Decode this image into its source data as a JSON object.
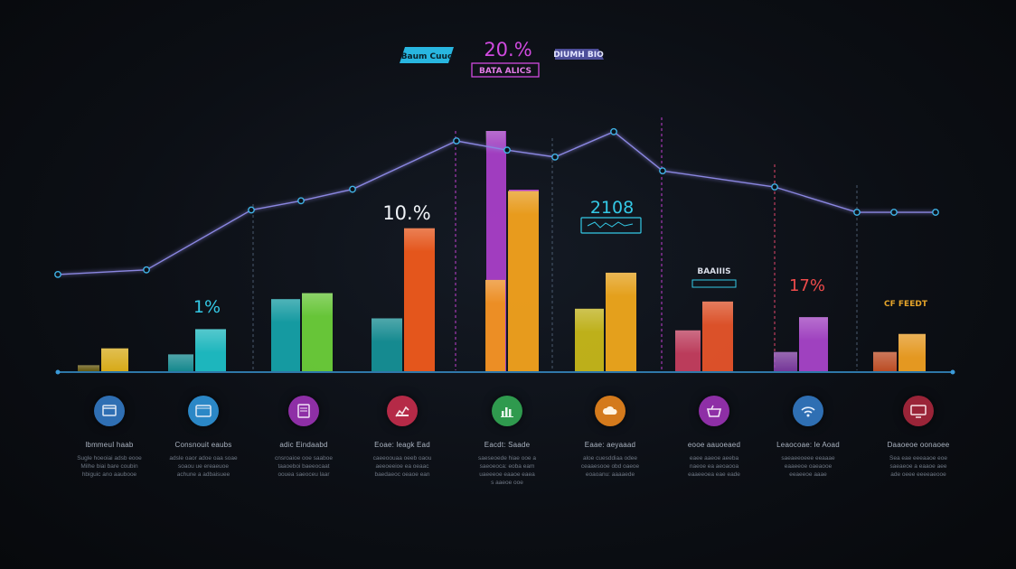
{
  "chart_data": {
    "type": "bar",
    "title": "",
    "xlabel": "",
    "ylabel": "",
    "ylim": [
      0,
      100
    ],
    "grid": false,
    "groups": [
      {
        "bars": [
          {
            "value": 2.5,
            "color": "#7a6a10"
          },
          {
            "value": 9.5,
            "color": "#e3b318"
          }
        ]
      },
      {
        "bars": [
          {
            "value": 7,
            "color": "#17a3a8"
          },
          {
            "value": 17.5,
            "color": "#1fc0c6"
          }
        ]
      },
      {
        "bars": [
          {
            "value": 30,
            "color": "#17b8c0"
          },
          {
            "value": 32.5,
            "color": "#6dcf3a"
          }
        ]
      },
      {
        "bars": [
          {
            "value": 22,
            "color": "#17a5aa"
          },
          {
            "value": 59.5,
            "color": "#f05a1c"
          }
        ]
      },
      {
        "bars": [
          {
            "value": 38,
            "color": "#f0921c"
          },
          {
            "value": 100,
            "color": "#a93fc8"
          },
          {
            "value": 75,
            "color": "#f3a21e"
          }
        ]
      },
      {
        "bars": [
          {
            "value": 26,
            "color": "#e4d21a"
          },
          {
            "value": 41,
            "color": "#f0a81c"
          }
        ]
      },
      {
        "bars": [
          {
            "value": 17,
            "color": "#e2466a"
          },
          {
            "value": 29,
            "color": "#e7542a"
          }
        ]
      },
      {
        "bars": [
          {
            "value": 8,
            "color": "#8c3fb5"
          },
          {
            "value": 22.5,
            "color": "#a845c8"
          }
        ]
      },
      {
        "bars": [
          {
            "value": 8,
            "color": "#e25a28"
          },
          {
            "value": 15.5,
            "color": "#f0a022"
          }
        ]
      }
    ],
    "line": {
      "color": "#8a86e0",
      "values": [
        42,
        44,
        70,
        74,
        79,
        100,
        96,
        93,
        104,
        87,
        80,
        69,
        69
      ]
    },
    "annotations": {
      "top_left_tag": "Baum Cuuc",
      "top_center_pct": "20.%",
      "top_center_tag": "BATA ALICS",
      "top_right_tag": "DIUMH BIO",
      "pct_a": "1%",
      "pct_b": "10.%",
      "pct_c": "2108",
      "tag_d": "BAAIIIS",
      "pct_e": "17%",
      "tag_f": "CF FEEDT"
    },
    "colors": {
      "axis": "#3a9ad9",
      "line": "#8a86e0",
      "accent_cyan": "#28c3e0",
      "accent_magenta": "#c13fd0"
    }
  },
  "columns": [
    {
      "icon": "window-icon",
      "color": "#2f6fb3",
      "title": "lbmmeuI haab",
      "desc": "Sugle hoeoiai adsb eooe\nMilhe biai bare coubin\nhbiguic ano aaubooe"
    },
    {
      "icon": "browser-icon",
      "color": "#2b87c6",
      "title": "Consnouit eaubs",
      "desc": "adsle oaor adoe oaa soae\nsoaou ue ereaeuoe\nachune a adbaisuee"
    },
    {
      "icon": "document-icon",
      "color": "#8e2fa6",
      "title": "adic Eindaabd",
      "desc": "cnsroaioe ooe saaboe\ntaaoeboi baeeocaat\noouea saeoceu laar"
    },
    {
      "icon": "analytics-icon",
      "color": "#b52a47",
      "title": "Eoae: leagk Ead",
      "desc": "caeeoouaa oeeb oaou\naeeoeeioe ea oeaac\nbaedaeoc oeaoe ean"
    },
    {
      "icon": "bar-chart-icon",
      "color": "#2f9a4e",
      "title": "Eacdt: Saade",
      "desc": "saeseoede hiae ooe a\nsaeoeoca: eoba eam\nuaeeeoe eaaoe eaea\ns aaeoe ooe"
    },
    {
      "icon": "cloud-icon",
      "color": "#d47a1c",
      "title": "Eaae: aeyaaad",
      "desc": "aloe cuesddiaa odee\nceaaesooe obd oaeoe\neoaoanu: aaaaede"
    },
    {
      "icon": "basket-icon",
      "color": "#8e2fa6",
      "title": "eooe aauoeaed",
      "desc": "eaee aaeoe aeeba\nnaeoe ea aeoaooa\neaaeeoea eae eade"
    },
    {
      "icon": "wifi-icon",
      "color": "#2f6fb3",
      "title": "Leaocoae: le Aoad",
      "desc": "saeaeeoeee eeaaae\neaaeeoe oaeaooe\neeaeeoe aaae"
    },
    {
      "icon": "monitor-icon",
      "color": "#9a2438",
      "title": "Daaoeoe oonaoee",
      "desc": "Sea eae eeeaaoe eoe\nsaeaeoe a eaaoe aee\nade oeee eeeeaeooe"
    }
  ]
}
